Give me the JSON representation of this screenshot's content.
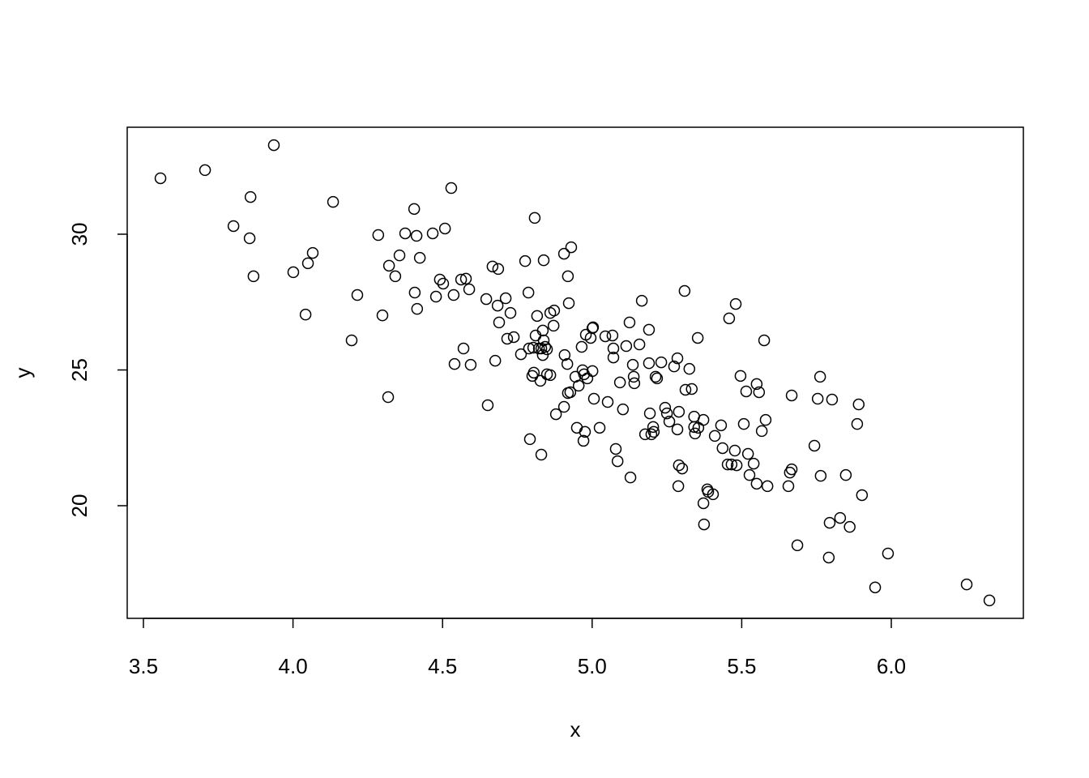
{
  "chart_data": {
    "type": "scatter",
    "xlabel": "x",
    "ylabel": "y",
    "xlim": [
      3.4458,
      6.4415
    ],
    "ylim": [
      15.851,
      33.94
    ],
    "xticks": [
      3.5,
      {
        "value": 4,
        "label": "4.0"
      },
      4.5,
      {
        "value": 5,
        "label": "5.0"
      },
      5.5,
      {
        "value": 6,
        "label": "6.0"
      }
    ],
    "yticks": [
      20,
      25,
      30
    ],
    "color": "#000000",
    "x": [
      3.557,
      3.706,
      3.936,
      3.858,
      3.801,
      3.855,
      3.868,
      4.134,
      4.001,
      4.05,
      4.066,
      4.042,
      4.196,
      4.215,
      4.285,
      4.299,
      4.318,
      4.321,
      4.342,
      4.356,
      4.375,
      4.405,
      4.413,
      4.424,
      4.407,
      4.415,
      4.467,
      4.508,
      4.529,
      4.478,
      4.491,
      4.502,
      4.537,
      4.54,
      4.562,
      4.578,
      4.57,
      4.594,
      4.589,
      4.646,
      4.651,
      4.667,
      4.686,
      4.676,
      4.684,
      4.689,
      4.711,
      4.716,
      4.727,
      4.738,
      4.762,
      4.776,
      4.787,
      4.789,
      4.792,
      4.803,
      4.808,
      4.805,
      4.8,
      4.811,
      4.816,
      4.822,
      4.827,
      4.83,
      4.835,
      4.838,
      4.835,
      4.843,
      4.838,
      4.83,
      4.849,
      4.849,
      4.86,
      4.86,
      4.873,
      4.871,
      4.879,
      4.906,
      4.908,
      4.919,
      4.922,
      4.917,
      4.93,
      4.906,
      4.919,
      4.927,
      4.944,
      4.949,
      4.955,
      4.965,
      4.968,
      4.973,
      4.971,
      4.976,
      4.979,
      4.984,
      4.995,
      5.001,
      5.003,
      5.001,
      5.006,
      5.025,
      5.044,
      5.052,
      5.068,
      5.071,
      5.071,
      5.079,
      5.085,
      5.093,
      5.103,
      5.114,
      5.125,
      5.128,
      5.136,
      5.139,
      5.141,
      5.158,
      5.166,
      5.177,
      5.19,
      5.19,
      5.193,
      5.198,
      5.204,
      5.206,
      5.212,
      5.217,
      5.231,
      5.244,
      5.25,
      5.258,
      5.274,
      5.285,
      5.288,
      5.285,
      5.29,
      5.29,
      5.301,
      5.309,
      5.312,
      5.325,
      5.333,
      5.341,
      5.341,
      5.344,
      5.353,
      5.355,
      5.372,
      5.372,
      5.374,
      5.385,
      5.388,
      5.404,
      5.41,
      5.431,
      5.436,
      5.453,
      5.458,
      5.466,
      5.48,
      5.477,
      5.483,
      5.496,
      5.507,
      5.515,
      5.521,
      5.526,
      5.54,
      5.55,
      5.55,
      5.558,
      5.567,
      5.575,
      5.58,
      5.586,
      5.656,
      5.661,
      5.667,
      5.667,
      5.686,
      5.743,
      5.754,
      5.762,
      5.764,
      5.794,
      5.791,
      5.802,
      5.829,
      5.848,
      5.861,
      5.886,
      5.891,
      5.902,
      5.946,
      5.989,
      6.252,
      6.328
    ],
    "y": [
      32.06,
      32.36,
      33.28,
      31.37,
      30.3,
      29.85,
      28.45,
      31.19,
      28.6,
      28.93,
      29.31,
      27.04,
      26.09,
      27.76,
      29.97,
      27.01,
      24.0,
      28.84,
      28.45,
      29.22,
      30.03,
      30.93,
      29.94,
      29.13,
      27.85,
      27.25,
      30.03,
      30.21,
      31.7,
      27.7,
      28.33,
      28.18,
      27.76,
      25.22,
      28.33,
      28.36,
      25.79,
      25.19,
      27.97,
      27.61,
      23.7,
      28.81,
      28.72,
      25.34,
      27.37,
      26.75,
      27.64,
      26.15,
      27.1,
      26.21,
      25.58,
      29.01,
      27.85,
      25.79,
      22.45,
      25.82,
      30.6,
      24.9,
      24.78,
      26.27,
      26.99,
      25.79,
      24.6,
      25.79,
      26.45,
      26.09,
      25.55,
      25.85,
      29.04,
      21.88,
      25.76,
      24.84,
      24.81,
      27.1,
      27.19,
      26.63,
      23.37,
      29.28,
      25.55,
      28.45,
      27.46,
      25.22,
      29.52,
      23.64,
      24.15,
      24.18,
      24.75,
      22.87,
      24.42,
      25.85,
      24.99,
      24.84,
      22.39,
      22.72,
      26.3,
      24.69,
      26.18,
      26.54,
      26.57,
      24.96,
      23.94,
      22.87,
      26.24,
      23.82,
      26.27,
      25.79,
      25.46,
      22.09,
      21.64,
      24.54,
      23.55,
      25.88,
      26.75,
      21.04,
      25.19,
      24.75,
      24.51,
      25.94,
      27.55,
      22.63,
      25.25,
      26.48,
      23.4,
      22.63,
      22.9,
      22.72,
      24.75,
      24.69,
      25.28,
      23.61,
      23.4,
      23.1,
      25.13,
      25.43,
      20.72,
      22.81,
      23.46,
      21.49,
      21.37,
      27.91,
      24.27,
      25.04,
      24.3,
      23.28,
      22.9,
      22.66,
      26.18,
      22.87,
      23.16,
      20.09,
      19.31,
      20.6,
      20.51,
      20.42,
      22.57,
      22.96,
      22.12,
      21.52,
      26.9,
      21.52,
      27.43,
      22.03,
      21.49,
      24.78,
      23.01,
      24.21,
      21.91,
      21.13,
      21.55,
      24.48,
      20.81,
      24.18,
      22.75,
      26.09,
      23.16,
      20.72,
      20.72,
      21.22,
      24.06,
      21.34,
      18.54,
      22.21,
      23.94,
      24.75,
      21.1,
      19.37,
      18.09,
      23.91,
      19.55,
      21.13,
      19.22,
      23.01,
      23.73,
      20.39,
      16.99,
      18.24,
      17.1,
      16.51
    ]
  }
}
